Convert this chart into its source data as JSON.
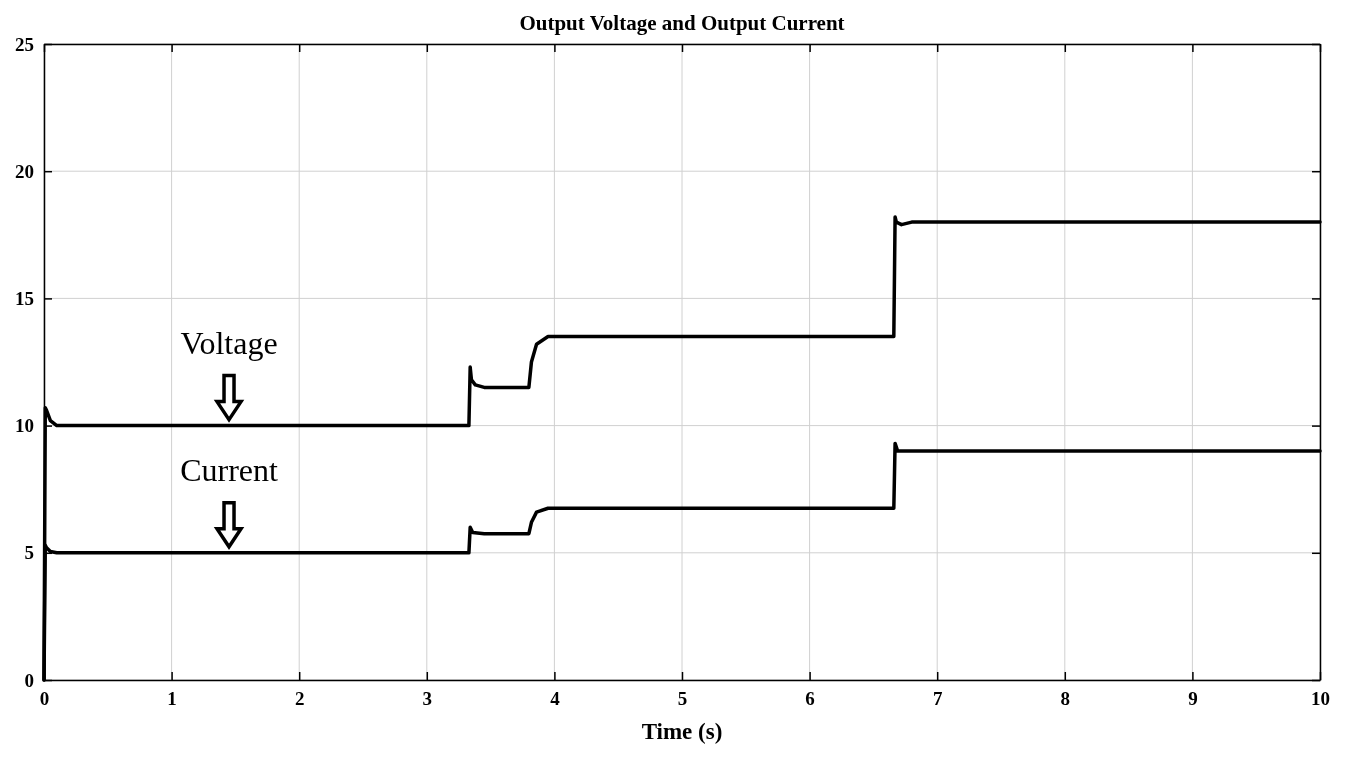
{
  "chart_data": {
    "type": "line",
    "title": "Output Voltage and Output Current",
    "xlabel": "Time (s)",
    "xlim": [
      0,
      10
    ],
    "ylim": [
      0,
      25
    ],
    "xticks": [
      0,
      1,
      2,
      3,
      4,
      5,
      6,
      7,
      8,
      9,
      10
    ],
    "yticks": [
      0,
      5,
      10,
      15,
      20,
      25
    ],
    "grid": true,
    "legend": "left",
    "marker": "none",
    "line_style": "solid",
    "series": [
      {
        "name": "Voltage",
        "color": "#000000",
        "x": [
          0,
          0.01,
          0.02,
          0.05,
          0.1,
          1,
          2,
          3,
          3.33,
          3.34,
          3.35,
          3.38,
          3.45,
          3.8,
          3.82,
          3.86,
          3.95,
          4.5,
          5,
          6,
          6.66,
          6.67,
          6.68,
          6.72,
          6.8,
          8,
          10
        ],
        "values": [
          0,
          10.7,
          10.6,
          10.2,
          10,
          10,
          10,
          10,
          10,
          12.3,
          11.8,
          11.6,
          11.5,
          11.5,
          12.5,
          13.2,
          13.5,
          13.5,
          13.5,
          13.5,
          13.5,
          18.2,
          18,
          17.9,
          18,
          18,
          18
        ]
      },
      {
        "name": "Current",
        "color": "#000000",
        "x": [
          0,
          0.01,
          0.02,
          0.05,
          0.1,
          1,
          2,
          3,
          3.33,
          3.34,
          3.36,
          3.45,
          3.8,
          3.82,
          3.86,
          3.95,
          4.5,
          5,
          6,
          6.66,
          6.67,
          6.69,
          6.75,
          8,
          10
        ],
        "values": [
          0,
          5.3,
          5.2,
          5.05,
          5,
          5,
          5,
          5,
          5,
          6,
          5.8,
          5.75,
          5.75,
          6.2,
          6.6,
          6.75,
          6.75,
          6.75,
          6.75,
          6.75,
          9.3,
          9,
          9,
          9,
          9
        ]
      }
    ]
  }
}
